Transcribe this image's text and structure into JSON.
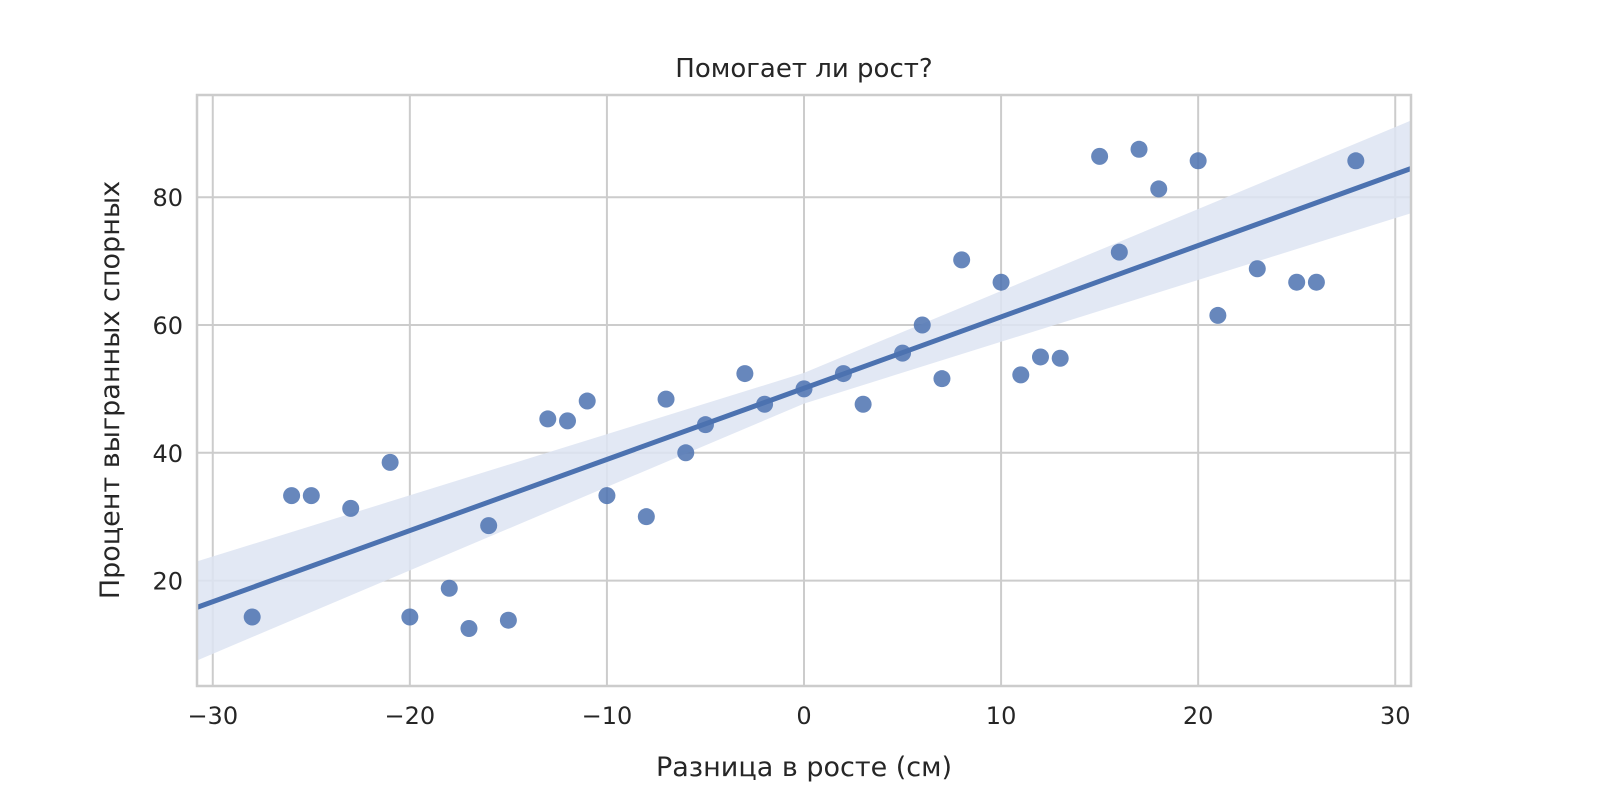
{
  "chart_data": {
    "type": "scatter",
    "title": "Помогает ли рост?",
    "xlabel": "Разница в росте (см)",
    "ylabel": "Процент выгранных спорных",
    "xlim": [
      -30.8,
      30.8
    ],
    "ylim": [
      3.5,
      96
    ],
    "x_ticks": [
      -30,
      -20,
      -10,
      0,
      10,
      20,
      30
    ],
    "x_tick_labels": [
      "−30",
      "−20",
      "−10",
      "0",
      "10",
      "20",
      "30"
    ],
    "y_ticks": [
      20,
      40,
      60,
      80
    ],
    "y_tick_labels": [
      "20",
      "40",
      "60",
      "80"
    ],
    "grid": true,
    "point_color": "#4c72b0",
    "line_color": "#4c72b0",
    "band_color": "#dde4f2",
    "points": [
      {
        "x": -28,
        "y": 14.3
      },
      {
        "x": -26,
        "y": 33.3
      },
      {
        "x": -25,
        "y": 33.3
      },
      {
        "x": -23,
        "y": 31.3
      },
      {
        "x": -21,
        "y": 38.5
      },
      {
        "x": -20,
        "y": 14.3
      },
      {
        "x": -18,
        "y": 18.8
      },
      {
        "x": -17,
        "y": 12.5
      },
      {
        "x": -16,
        "y": 28.6
      },
      {
        "x": -15,
        "y": 13.8
      },
      {
        "x": -13,
        "y": 45.3
      },
      {
        "x": -12,
        "y": 45.0
      },
      {
        "x": -11,
        "y": 48.1
      },
      {
        "x": -10,
        "y": 33.3
      },
      {
        "x": -8,
        "y": 30.0
      },
      {
        "x": -7,
        "y": 48.4
      },
      {
        "x": -6,
        "y": 40.0
      },
      {
        "x": -5,
        "y": 44.4
      },
      {
        "x": -3,
        "y": 52.4
      },
      {
        "x": -2,
        "y": 47.6
      },
      {
        "x": 0,
        "y": 50.0
      },
      {
        "x": 2,
        "y": 52.4
      },
      {
        "x": 3,
        "y": 47.6
      },
      {
        "x": 5,
        "y": 55.6
      },
      {
        "x": 6,
        "y": 60.0
      },
      {
        "x": 7,
        "y": 51.6
      },
      {
        "x": 8,
        "y": 70.2
      },
      {
        "x": 10,
        "y": 66.7
      },
      {
        "x": 11,
        "y": 52.2
      },
      {
        "x": 12,
        "y": 55.0
      },
      {
        "x": 13,
        "y": 54.8
      },
      {
        "x": 15,
        "y": 86.4
      },
      {
        "x": 16,
        "y": 71.4
      },
      {
        "x": 17,
        "y": 87.5
      },
      {
        "x": 18,
        "y": 81.3
      },
      {
        "x": 20,
        "y": 85.7
      },
      {
        "x": 21,
        "y": 61.5
      },
      {
        "x": 23,
        "y": 68.8
      },
      {
        "x": 25,
        "y": 66.7
      },
      {
        "x": 26,
        "y": 66.7
      },
      {
        "x": 28,
        "y": 85.7
      }
    ],
    "regression": {
      "x": [
        -30.8,
        0,
        30.8
      ],
      "y": [
        15.8,
        50.1,
        84.5
      ],
      "band_upper": [
        23.0,
        52.5,
        92.0
      ],
      "band_lower": [
        7.5,
        47.7,
        77.5
      ]
    }
  }
}
